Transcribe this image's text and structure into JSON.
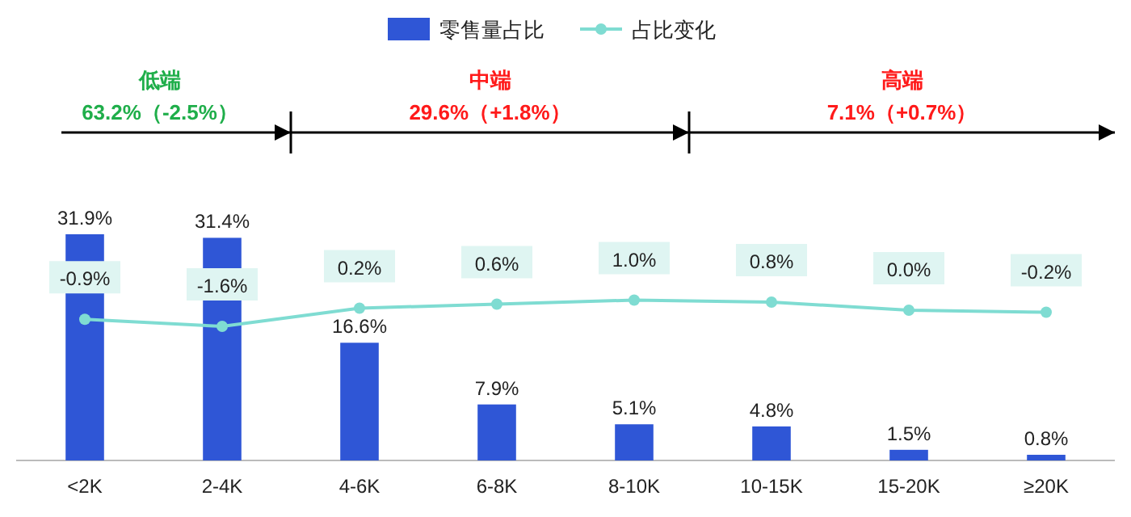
{
  "chart_data": {
    "type": "bar",
    "categories": [
      "<2K",
      "2-4K",
      "4-6K",
      "6-8K",
      "8-10K",
      "10-15K",
      "15-20K",
      "≥20K"
    ],
    "series": [
      {
        "name": "零售量占比",
        "color": "#2f56d6",
        "values": [
          31.9,
          31.4,
          16.6,
          7.9,
          5.1,
          4.8,
          1.5,
          0.8
        ],
        "value_labels": [
          "31.9%",
          "31.4%",
          "16.6%",
          "7.9%",
          "5.1%",
          "4.8%",
          "1.5%",
          "0.8%"
        ]
      },
      {
        "name": "占比变化",
        "type": "line",
        "axis": "y2",
        "color": "#7fdcd2",
        "marker": "circle",
        "values": [
          -0.9,
          -1.6,
          0.2,
          0.6,
          1.0,
          0.8,
          0.0,
          -0.2
        ],
        "value_labels": [
          "-0.9%",
          "-1.6%",
          "0.2%",
          "0.6%",
          "1.0%",
          "0.8%",
          "0.0%",
          "-0.2%"
        ]
      }
    ],
    "tick_labels": "x",
    "legend": "top",
    "annotations": [
      "低端\n63.2%（-2.5%）",
      "中端\n29.6%（+1.8%）",
      "高端\n7.1%（+0.7%）"
    ]
  }
}
